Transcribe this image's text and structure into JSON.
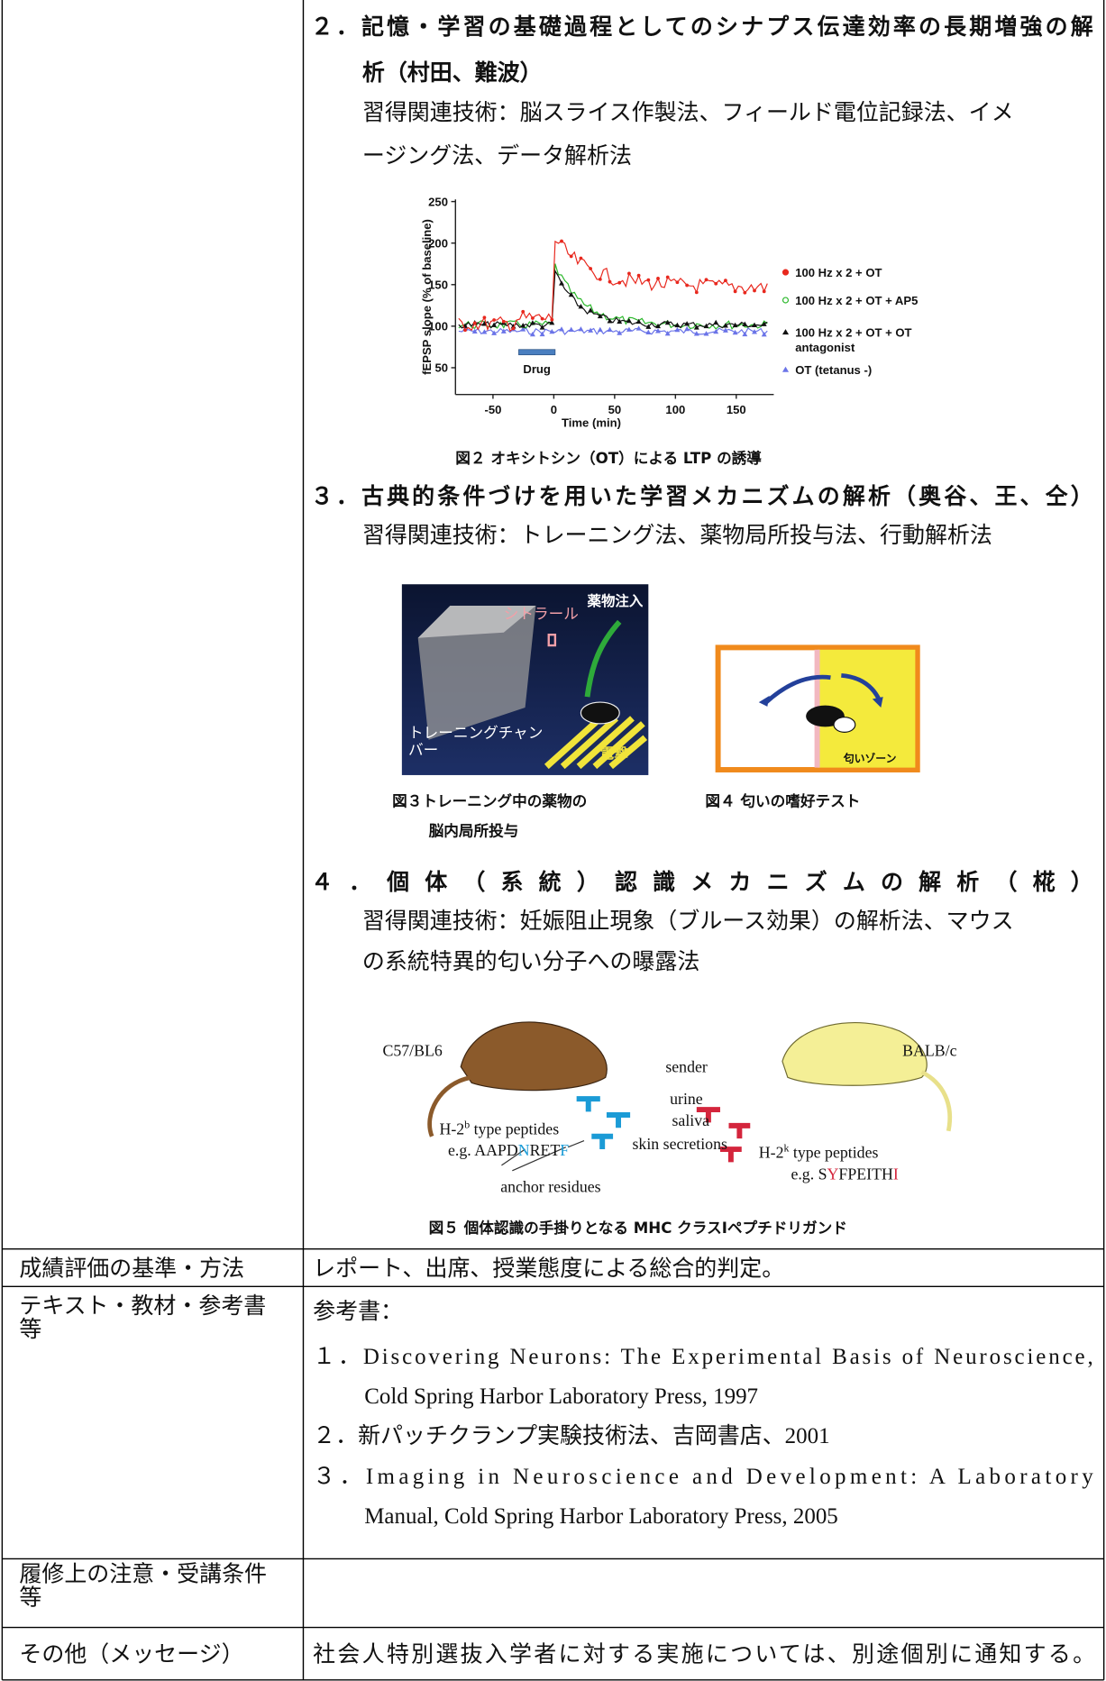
{
  "items": [
    {
      "title": [
        "２．記憶・学習の基礎過程としてのシナプス伝達効率の長期増強の解",
        "析（村田、難波）"
      ],
      "skills": [
        "習得関連技術：脳スライス作製法、フィールド電位記録法、イメ",
        "ージング法、データ解析法"
      ]
    },
    {
      "title": [
        "３．古典的条件づけを用いた学習メカニズムの解析（奥谷、王、仝）"
      ],
      "skills": [
        "習得関連技術：トレーニング法、薬物局所投与法、行動解析法"
      ]
    },
    {
      "title": [
        "４．個体（系統）認識メカニズムの解析（椛）"
      ],
      "skills": [
        "習得関連技術：妊娠阻止現象（ブルース効果）の解析法、マウス",
        "の系統特異的匂い分子への曝露法"
      ]
    }
  ],
  "figure2": {
    "y_label": "fEPSP slope (% of baseline)",
    "x_label": "Time (min)",
    "yticks": [
      50,
      100,
      150,
      200,
      250
    ],
    "xticks": [
      -50,
      0,
      50,
      100,
      150
    ],
    "drug": "Drug",
    "legend": [
      [
        "100 Hz x 2 + OT"
      ],
      [
        "100 Hz x 2 + OT + AP5"
      ],
      [
        "100 Hz x 2 + OT + OT",
        "antagonist"
      ],
      [
        "OT  (tetanus -)"
      ]
    ],
    "caption": "図２ オキシトシン（OT）による LTP の誘導"
  },
  "figure3": {
    "labels": [
      "薬物注入",
      "シトラール",
      "トレーニングチャン",
      "バー",
      "電撃"
    ],
    "caption": [
      "図３トレーニング中の薬物の",
      "脳内局所投与"
    ]
  },
  "figure4": {
    "label": "匂いゾーン",
    "caption": "図４ 匂いの嗜好テスト"
  },
  "figure5": {
    "left_strain": "C57/BL6",
    "right_strain": "BALB/c",
    "sender": "sender",
    "urine": "urine",
    "saliva": "saliva",
    "skin": "skin secretions",
    "left_peptides": [
      "H-2",
      "b",
      " type peptides"
    ],
    "left_example": [
      "e.g. AAPD",
      "N",
      "RET",
      "F"
    ],
    "anchor": "anchor residues",
    "right_peptides": [
      "H-2",
      "k",
      " type peptides"
    ],
    "right_example": [
      "e.g. S",
      "Y",
      "FPEITH",
      "I"
    ],
    "caption": "図５ 個体認識の手掛りとなる MHC クラスⅠペプチドリガンド"
  },
  "table": {
    "rows": [
      {
        "label": [
          "成績評価の基準・方法"
        ],
        "content": "レポート、出席、授業態度による総合的判定。"
      },
      {
        "label": [
          "テキスト・教材・参考書",
          "等"
        ],
        "content": "参考書：",
        "refs": [
          [
            "１．Discovering Neurons: The Experimental Basis of Neuroscience,",
            "Cold Spring Harbor Laboratory Press, 1997"
          ],
          [
            "２．新パッチクランプ実験技術法、吉岡書店、2001"
          ],
          [
            "３．Imaging  in  Neuroscience  and  Development:  A  Laboratory",
            "Manual, Cold Spring Harbor Laboratory Press, 2005"
          ]
        ]
      },
      {
        "label": [
          "履修上の注意・受講条件",
          "等"
        ]
      },
      {
        "label": [
          "その他（メッセージ）"
        ],
        "content": "社会人特別選抜入学者に対する実施については、別途個別に通知する。"
      }
    ]
  }
}
